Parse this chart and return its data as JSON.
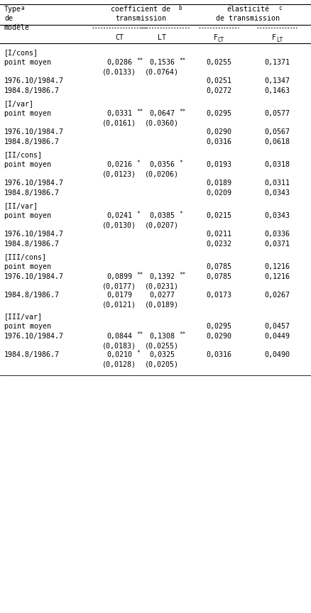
{
  "bg_color": "#ffffff",
  "sections": [
    {
      "label": "[I/cons]",
      "rows": [
        {
          "row_label": "point moyen",
          "CT": "0,0286",
          "CT_stars": "**",
          "CT_se": "(0.0133)",
          "LT": "0,1536",
          "LT_stars": "**",
          "LT_se": "(0.0764)",
          "FCT": "0,0255",
          "FLT": "0,1371"
        },
        {
          "row_label": "1976.10/1984.7",
          "CT": "",
          "CT_stars": "",
          "CT_se": "",
          "LT": "",
          "LT_stars": "",
          "LT_se": "",
          "FCT": "0,0251",
          "FLT": "0,1347"
        },
        {
          "row_label": "1984.8/1986.7",
          "CT": "",
          "CT_stars": "",
          "CT_se": "",
          "LT": "",
          "LT_stars": "",
          "LT_se": "",
          "FCT": "0,0272",
          "FLT": "0,1463"
        }
      ]
    },
    {
      "label": "[I/var]",
      "rows": [
        {
          "row_label": "point moyen",
          "CT": "0,0331",
          "CT_stars": "**",
          "CT_se": "(0,0161)",
          "LT": "0,0647",
          "LT_stars": "**",
          "LT_se": "(0.0360)",
          "FCT": "0,0295",
          "FLT": "0,0577"
        },
        {
          "row_label": "1976.10/1984.7",
          "CT": "",
          "CT_stars": "",
          "CT_se": "",
          "LT": "",
          "LT_stars": "",
          "LT_se": "",
          "FCT": "0,0290",
          "FLT": "0,0567"
        },
        {
          "row_label": "1984.8/1986.7",
          "CT": "",
          "CT_stars": "",
          "CT_se": "",
          "LT": "",
          "LT_stars": "",
          "LT_se": "",
          "FCT": "0,0316",
          "FLT": "0,0618"
        }
      ]
    },
    {
      "label": "[II/cons]",
      "rows": [
        {
          "row_label": "point moyen",
          "CT": "0,0216",
          "CT_stars": "*",
          "CT_se": "(0,0123)",
          "LT": "0,0356",
          "LT_stars": "*",
          "LT_se": "(0,0206)",
          "FCT": "0,0193",
          "FLT": "0,0318"
        },
        {
          "row_label": "1976.10/1984.7",
          "CT": "",
          "CT_stars": "",
          "CT_se": "",
          "LT": "",
          "LT_stars": "",
          "LT_se": "",
          "FCT": "0,0189",
          "FLT": "0,0311"
        },
        {
          "row_label": "1984.8/1986.7",
          "CT": "",
          "CT_stars": "",
          "CT_se": "",
          "LT": "",
          "LT_stars": "",
          "LT_se": "",
          "FCT": "0,0209",
          "FLT": "0,0343"
        }
      ]
    },
    {
      "label": "[II/var]",
      "rows": [
        {
          "row_label": "point moyen",
          "CT": "0,0241",
          "CT_stars": "*",
          "CT_se": "(0,0130)",
          "LT": "0,0385",
          "LT_stars": "*",
          "LT_se": "(0,0207)",
          "FCT": "0,0215",
          "FLT": "0,0343"
        },
        {
          "row_label": "1976.10/1984.7",
          "CT": "",
          "CT_stars": "",
          "CT_se": "",
          "LT": "",
          "LT_stars": "",
          "LT_se": "",
          "FCT": "0,0211",
          "FLT": "0,0336"
        },
        {
          "row_label": "1984.8/1986.7",
          "CT": "",
          "CT_stars": "",
          "CT_se": "",
          "LT": "",
          "LT_stars": "",
          "LT_se": "",
          "FCT": "0,0232",
          "FLT": "0,0371"
        }
      ]
    },
    {
      "label": "[III/cons]",
      "rows": [
        {
          "row_label": "point moyen",
          "CT": "",
          "CT_stars": "",
          "CT_se": "",
          "LT": "",
          "LT_stars": "",
          "LT_se": "",
          "FCT": "0,0785",
          "FLT": "0,1216"
        },
        {
          "row_label": "1976.10/1984.7",
          "CT": "0,0899",
          "CT_stars": "**",
          "CT_se": "(0,0177)",
          "LT": "0,1392",
          "LT_stars": "**",
          "LT_se": "(0,0231)",
          "FCT": "0,0785",
          "FLT": "0,1216"
        },
        {
          "row_label": "1984.8/1986.7",
          "CT": "0,0179",
          "CT_stars": "",
          "CT_se": "(0,0121)",
          "LT": "0,0277",
          "LT_stars": "",
          "LT_se": "(0,0189)",
          "FCT": "0,0173",
          "FLT": "0,0267"
        }
      ]
    },
    {
      "label": "[III/var]",
      "rows": [
        {
          "row_label": "point moyen",
          "CT": "",
          "CT_stars": "",
          "CT_se": "",
          "LT": "",
          "LT_stars": "",
          "LT_se": "",
          "FCT": "0,0295",
          "FLT": "0,0457"
        },
        {
          "row_label": "1976.10/1984.7",
          "CT": "0,0844",
          "CT_stars": "**",
          "CT_se": "(0,0183)",
          "LT": "0,1308",
          "LT_stars": "**",
          "LT_se": "(0,0255)",
          "FCT": "0,0290",
          "FLT": "0,0449"
        },
        {
          "row_label": "1984.8/1986.7",
          "CT": "0,0210",
          "CT_stars": "*",
          "CT_se": "(0,0128)",
          "LT": "0,0325",
          "LT_stars": "",
          "LT_se": "(0,0205)",
          "FCT": "0,0316",
          "FLT": "0,0490"
        }
      ]
    }
  ]
}
